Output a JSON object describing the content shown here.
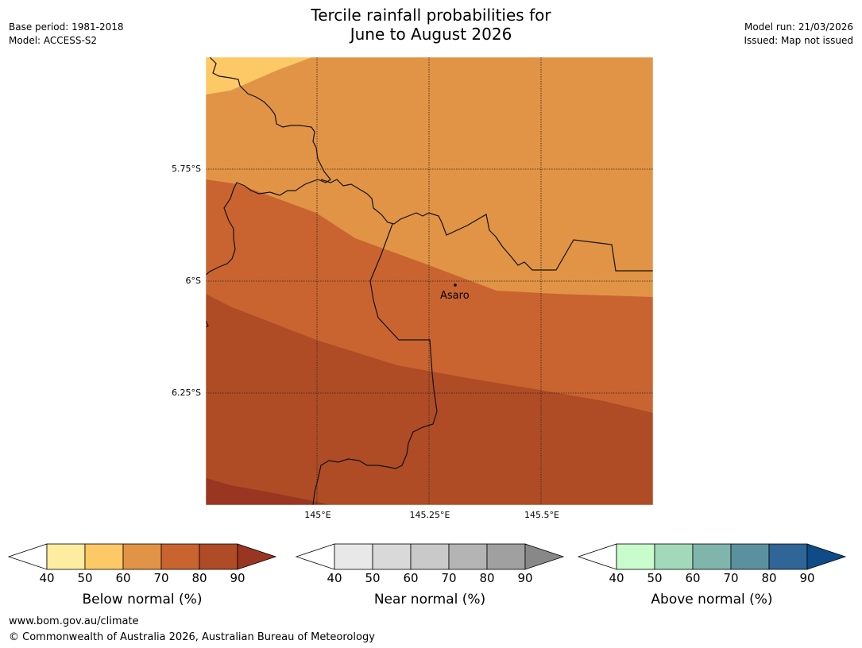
{
  "header": {
    "title_line1": "Tercile rainfall probabilities for",
    "title_line2": "June to August 2026",
    "base_period": "Base period: 1981-2018",
    "model": "Model: ACCESS-S2",
    "model_run": "Model run: 21/03/2026",
    "issued": "Issued: Map not issued"
  },
  "map": {
    "lat_labels": [
      "5.75°S",
      "6°S",
      "6.25°S"
    ],
    "lon_labels": [
      "145°E",
      "145.25°E",
      "145.5°E"
    ],
    "place_name": "Asaro",
    "zone_colors": {
      "below_50_60": "#fdc966",
      "below_60_70": "#e19445",
      "below_70_80": "#c96431",
      "below_80_90": "#af4c25",
      "below_90_plus": "#993621"
    }
  },
  "legends": {
    "below": {
      "title": "Below normal (%)",
      "ticks": [
        "40",
        "50",
        "60",
        "70",
        "80",
        "90"
      ],
      "colors": [
        "#feeca1",
        "#fdc966",
        "#e19445",
        "#c96431",
        "#af4c25"
      ],
      "extend_color": "#993621"
    },
    "near": {
      "title": "Near normal (%)",
      "ticks": [
        "40",
        "50",
        "60",
        "70",
        "80",
        "90"
      ],
      "colors": [
        "#e8e8e8",
        "#d9d9d9",
        "#c9c9c9",
        "#b4b4b4",
        "#a0a0a0"
      ],
      "extend_color": "#888888"
    },
    "above": {
      "title": "Above normal (%)",
      "ticks": [
        "40",
        "50",
        "60",
        "70",
        "80",
        "90"
      ],
      "colors": [
        "#c8fccc",
        "#a2d9ba",
        "#80b5ac",
        "#5b919e",
        "#2f6597"
      ],
      "extend_color": "#0f4b86"
    }
  },
  "footer": {
    "url": "www.bom.gov.au/climate",
    "copyright": "© Commonwealth of Australia 2026, Australian Bureau of Meteorology"
  }
}
